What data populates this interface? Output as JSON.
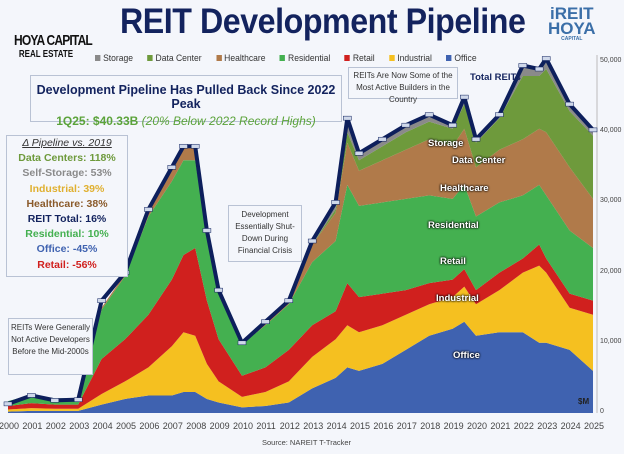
{
  "title": "REIT Development Pipeline",
  "logo_left": {
    "line1": "HOYA CAPITAL",
    "line2": "REAL ESTATE"
  },
  "logo_right": {
    "line1": "iREIT",
    "line2": "HOYA",
    "line3": "CAPITAL"
  },
  "headline": {
    "title": "Development Pipeline Has Pulled Back Since 2022 Peak",
    "value": "1Q25: $40.33B",
    "note": "(20% Below 2022 Record Highs)"
  },
  "vs_box": {
    "title": "Δ Pipeline vs. 2019",
    "items": [
      {
        "label": "Data Centers: 118%",
        "color": "#6e9a3c"
      },
      {
        "label": "Self-Storage: 53%",
        "color": "#8a8a8a"
      },
      {
        "label": "Industrial: 39%",
        "color": "#e0b030"
      },
      {
        "label": "Healthcare: 38%",
        "color": "#8a5a2a"
      },
      {
        "label": "REIT Total: 16%",
        "color": "#13235e"
      },
      {
        "label": "Residential: 10%",
        "color": "#44b050"
      },
      {
        "label": "Office: -45%",
        "color": "#3f62b0"
      },
      {
        "label": "Retail: -56%",
        "color": "#d0201e"
      }
    ]
  },
  "annotations": {
    "early": "REITs Were Generally Not Active Developers Before the Mid-2000s",
    "crisis": "Development Essentially Shut-Down During Financial Crisis",
    "builders": "REITs Are Now Some of the Most Active Builders in the Country"
  },
  "source": "Source: NAREIT T-Tracker",
  "unit": "$M",
  "chart_data": {
    "type": "area",
    "stacked": true,
    "title": "REIT Development Pipeline",
    "xlabel": "",
    "ylabel": "$M",
    "xlim": [
      2000,
      2025
    ],
    "ylim": [
      0,
      55000
    ],
    "x_ticks": [
      "2000",
      "2001",
      "2002",
      "2003",
      "2004",
      "2005",
      "2006",
      "2007",
      "2008",
      "2009",
      "2010",
      "2011",
      "2012",
      "2013",
      "2014",
      "2015",
      "2016",
      "2017",
      "2018",
      "2019",
      "2020",
      "2021",
      "2022",
      "2023",
      "2024",
      "2025"
    ],
    "y_ticks": [
      "0",
      "10,000",
      "20,000",
      "30,000",
      "40,000",
      "50,000"
    ],
    "legend_position": "top",
    "x": [
      2000,
      2001,
      2002,
      2003,
      2004,
      2005,
      2006,
      2007,
      2007.5,
      2008,
      2008.5,
      2009,
      2010,
      2011,
      2012,
      2013,
      2014,
      2014.5,
      2015,
      2016,
      2017,
      2018,
      2019,
      2019.5,
      2020,
      2021,
      2022,
      2022.7,
      2023,
      2024,
      2025
    ],
    "series": [
      {
        "name": "Office",
        "color": "#3f62b0",
        "values": [
          200,
          300,
          300,
          300,
          1200,
          2000,
          2500,
          2500,
          3000,
          3000,
          2000,
          1500,
          800,
          1000,
          1500,
          3500,
          5000,
          6500,
          6000,
          7000,
          9000,
          11000,
          12000,
          13000,
          11000,
          11500,
          11500,
          10000,
          10000,
          9000,
          6000
        ]
      },
      {
        "name": "Industrial",
        "color": "#f5c020",
        "values": [
          300,
          400,
          300,
          300,
          1500,
          2500,
          4000,
          7000,
          8500,
          8000,
          5000,
          3000,
          1500,
          2000,
          3000,
          4500,
          5500,
          6000,
          5500,
          5500,
          5000,
          4500,
          4500,
          5000,
          4500,
          6000,
          8500,
          11000,
          10000,
          6000,
          8000
        ]
      },
      {
        "name": "Retail",
        "color": "#d0201e",
        "values": [
          500,
          700,
          600,
          600,
          5000,
          6000,
          7500,
          9500,
          11000,
          12500,
          9000,
          6000,
          3000,
          3500,
          4500,
          4500,
          4000,
          6000,
          5000,
          4500,
          3500,
          3000,
          2500,
          2500,
          2000,
          2500,
          2000,
          3000,
          2000,
          2000,
          2000
        ]
      },
      {
        "name": "Residential",
        "color": "#44b050",
        "values": [
          700,
          1200,
          900,
          900,
          7000,
          9000,
          14000,
          14000,
          13500,
          12500,
          9000,
          6500,
          4500,
          6000,
          6500,
          9000,
          10000,
          14000,
          13000,
          13000,
          13000,
          12500,
          11500,
          12000,
          10500,
          10000,
          9000,
          8500,
          9000,
          9000,
          7500
        ]
      },
      {
        "name": "Healthcare",
        "color": "#b07a4a",
        "values": [
          0,
          0,
          0,
          0,
          300,
          300,
          500,
          1500,
          2000,
          2000,
          1000,
          500,
          300,
          500,
          500,
          2500,
          4000,
          6000,
          5000,
          6000,
          7000,
          8000,
          7500,
          8000,
          7000,
          7500,
          8000,
          8000,
          9000,
          9000,
          7000
        ]
      },
      {
        "name": "Data Center",
        "color": "#6e9a3c",
        "values": [
          0,
          0,
          0,
          0,
          0,
          0,
          0,
          0,
          0,
          0,
          0,
          0,
          0,
          0,
          0,
          0,
          500,
          1500,
          1500,
          2000,
          2500,
          2500,
          2500,
          3500,
          3500,
          4500,
          9000,
          7500,
          9000,
          8000,
          9000
        ]
      },
      {
        "name": "Storage",
        "color": "#8a8a8a",
        "values": [
          0,
          0,
          0,
          0,
          0,
          0,
          0,
          0,
          0,
          0,
          0,
          0,
          0,
          0,
          0,
          500,
          1000,
          2000,
          1000,
          1000,
          1000,
          1000,
          500,
          1000,
          500,
          500,
          1500,
          1000,
          1500,
          1000,
          800
        ]
      }
    ],
    "total": {
      "name": "Total REITs",
      "color": "#0d1f5c",
      "values": [
        1300,
        2500,
        1800,
        1900,
        16000,
        20000,
        29000,
        35000,
        38000,
        38000,
        26000,
        17500,
        10000,
        13000,
        16000,
        24500,
        30000,
        42000,
        37000,
        39000,
        41000,
        42500,
        41000,
        45000,
        39000,
        42500,
        49500,
        49000,
        50500,
        44000,
        40330
      ]
    }
  }
}
